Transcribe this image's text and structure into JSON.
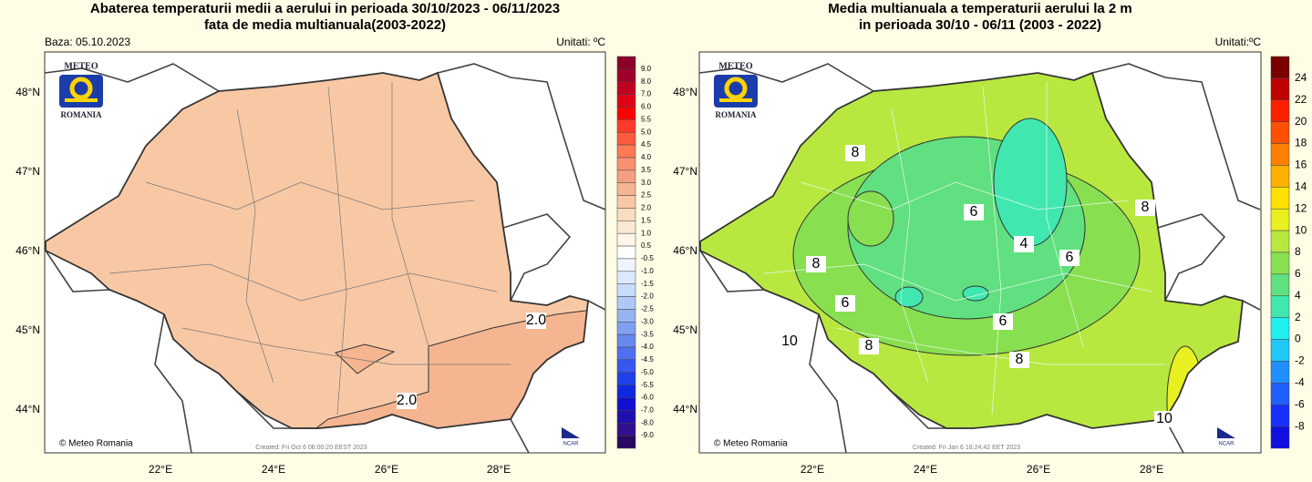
{
  "panels": [
    {
      "title": [
        "Abaterea temperaturii medii a aerului in perioada 30/10/2023 - 06/11/2023",
        "fata de media multianuala(2003-2022)"
      ],
      "base": "Baza: 05.10.2023",
      "units": "Unitati: ºC",
      "lat_labels": [
        "48°N",
        "47°N",
        "46°N",
        "45°N",
        "44°N"
      ],
      "lon_labels": [
        "22°E",
        "24°E",
        "26°E",
        "28°E"
      ],
      "colorbar": {
        "labels": [
          "9.0",
          "8.0",
          "7.0",
          "6.0",
          "5.5",
          "5.0",
          "4.5",
          "4.0",
          "3.5",
          "3.0",
          "2.5",
          "2.0",
          "1.5",
          "1.0",
          "0.5",
          "-0.5",
          "-1.0",
          "-1.5",
          "-2.0",
          "-2.5",
          "-3.0",
          "-3.5",
          "-4.0",
          "-4.5",
          "-5.0",
          "-5.5",
          "-6.0",
          "-7.0",
          "-8.0",
          "-9.0"
        ],
        "colors": [
          "#8b0028",
          "#a0002a",
          "#c00020",
          "#e00018",
          "#ff0000",
          "#ff3a2a",
          "#ff5a40",
          "#ff7a55",
          "#f99070",
          "#f4a080",
          "#f5b590",
          "#f8c8a5",
          "#fadcc0",
          "#fbe8d5",
          "#fff5e8",
          "#ffffff",
          "#f0f4ff",
          "#dce8ff",
          "#c8dcff",
          "#b0c8f8",
          "#98b4f0",
          "#80a0f0",
          "#6888f0",
          "#5070f0",
          "#3858f0",
          "#2040e8",
          "#1028e0",
          "#1010d0",
          "#2010b0",
          "#301090",
          "#280860"
        ]
      },
      "contour_labels": [
        "2.0",
        "2.0"
      ],
      "logo": [
        "METEO",
        "ROMANIA"
      ],
      "ncar": "NCAR",
      "credit": "© Meteo Romania",
      "created": "Created: Fri Oct  6 06:00:20 EEST 2023"
    },
    {
      "title": [
        "Media multianuala a temperaturii aerului la 2 m",
        "in perioada 30/10 - 06/11 (2003 - 2022)"
      ],
      "units": "Unitati:ºC",
      "lat_labels": [
        "48°N",
        "47°N",
        "46°N",
        "45°N",
        "44°N"
      ],
      "lon_labels": [
        "22°E",
        "24°E",
        "26°E",
        "28°E"
      ],
      "colorbar": {
        "labels": [
          "24",
          "22",
          "20",
          "18",
          "16",
          "14",
          "12",
          "10",
          "8",
          "6",
          "4",
          "2",
          "0",
          "-2",
          "-4",
          "-6",
          "-8"
        ],
        "colors": [
          "#7a0000",
          "#c00000",
          "#ff2000",
          "#ff5000",
          "#ff8000",
          "#ffb000",
          "#ffe000",
          "#e8f020",
          "#b8e840",
          "#88e050",
          "#60e080",
          "#40e8b0",
          "#20f0f0",
          "#20c8f8",
          "#2090ff",
          "#2060ff",
          "#1830ff",
          "#1010e0"
        ]
      },
      "contour_labels": [
        "8",
        "8",
        "8",
        "6",
        "6",
        "6",
        "4",
        "6",
        "8",
        "8",
        "10",
        "10"
      ],
      "logo": [
        "METEO",
        "ROMANIA"
      ],
      "ncar": "NCAR",
      "credit": "© Meteo Romania",
      "created": "Created: Fri Jan  6 16:24:42 EET 2023"
    }
  ]
}
